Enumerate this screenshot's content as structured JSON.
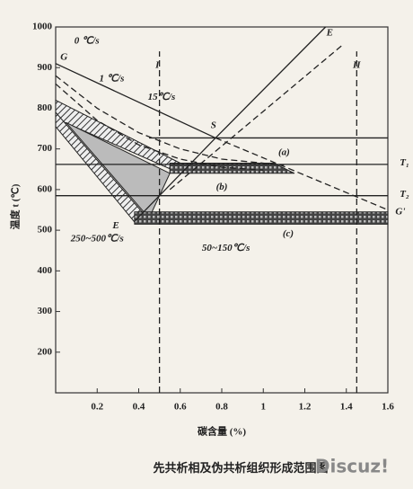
{
  "chart_data": {
    "type": "line",
    "y_label": "温度 t (℃)",
    "x_label": "碳含量 (%)",
    "caption": "先共析相及伪共析组织形成范围图",
    "watermark": "Discuz!",
    "xlim": [
      0,
      1.6
    ],
    "ylim": [
      100,
      1000
    ],
    "xticks": [
      0.2,
      0.4,
      0.6,
      0.8,
      1.0,
      1.2,
      1.4,
      1.6
    ],
    "yticks": [
      200,
      300,
      400,
      500,
      600,
      700,
      800,
      900,
      1000
    ],
    "series": [
      {
        "x": [
          0,
          0.77
        ],
        "y": [
          910,
          727
        ],
        "dash": false
      },
      {
        "x": [
          0.45,
          1.6
        ],
        "y": [
          727,
          727
        ],
        "dash": false
      },
      {
        "x": [
          0.77,
          1.3
        ],
        "y": [
          727,
          1000
        ],
        "dash": false
      },
      {
        "x": [
          0,
          1.6
        ],
        "y": [
          662,
          662
        ],
        "dash": false
      },
      {
        "x": [
          0,
          1.6
        ],
        "y": [
          585,
          585
        ],
        "dash": false
      },
      {
        "x": [
          0.38,
          0.77
        ],
        "y": [
          522,
          727
        ],
        "dash": false
      },
      {
        "x": [
          0,
          0.2,
          0.4,
          0.6,
          0.8,
          1.0,
          1.1
        ],
        "y": [
          880,
          800,
          740,
          700,
          675,
          665,
          660
        ],
        "dash": true
      },
      {
        "x": [
          0,
          0.2,
          0.4,
          0.6,
          0.8,
          1.0
        ],
        "y": [
          860,
          770,
          710,
          675,
          655,
          648
        ],
        "dash": true
      },
      {
        "x": [
          0.77,
          1.6
        ],
        "y": [
          727,
          550
        ],
        "dash": true
      },
      {
        "x": [
          0.55,
          1.38
        ],
        "y": [
          600,
          955
        ],
        "dash": true
      },
      {
        "x": [
          0.5,
          0.5
        ],
        "y": [
          100,
          940
        ],
        "dash": true
      },
      {
        "x": [
          1.45,
          1.45
        ],
        "y": [
          100,
          940
        ],
        "dash": true
      }
    ],
    "regions": [
      {
        "x": [
          0,
          0.6,
          0.6,
          0
        ],
        "y": [
          820,
          665,
          640,
          775
        ],
        "pattern": "hatch"
      },
      {
        "x": [
          0,
          0.45,
          0.38,
          0
        ],
        "y": [
          790,
          525,
          520,
          755
        ],
        "pattern": "hatch"
      },
      {
        "x": [
          0.05,
          0.55,
          0.45
        ],
        "y": [
          765,
          640,
          530
        ],
        "pattern": "gray"
      },
      {
        "x": [
          0.55,
          1.05,
          1.15,
          0.55
        ],
        "y": [
          665,
          665,
          640,
          640
        ],
        "pattern": "cross"
      },
      {
        "x": [
          0.38,
          1.6,
          1.6,
          0.38
        ],
        "y": [
          545,
          545,
          515,
          515
        ],
        "pattern": "cross"
      }
    ],
    "annotations": [
      {
        "text": "G",
        "x": 0.04,
        "y": 925
      },
      {
        "text": "0 ℃/s",
        "x": 0.15,
        "y": 965
      },
      {
        "text": "1 ℃/s",
        "x": 0.27,
        "y": 872
      },
      {
        "text": "15℃/s",
        "x": 0.51,
        "y": 827
      },
      {
        "text": "S",
        "x": 0.76,
        "y": 757
      },
      {
        "text": "E",
        "x": 1.32,
        "y": 985
      },
      {
        "text": "(a)",
        "x": 1.1,
        "y": 690
      },
      {
        "text": "(b)",
        "x": 0.8,
        "y": 605
      },
      {
        "text": "(c)",
        "x": 1.12,
        "y": 490
      },
      {
        "text": "E",
        "x": 0.29,
        "y": 510
      },
      {
        "text": "T₁",
        "x": 1.68,
        "y": 665
      },
      {
        "text": "T₂",
        "x": 1.68,
        "y": 588
      },
      {
        "text": "G'",
        "x": 1.66,
        "y": 545
      },
      {
        "text": "I",
        "x": 0.49,
        "y": 905
      },
      {
        "text": "II",
        "x": 1.45,
        "y": 905
      },
      {
        "text": "250~500℃/s",
        "x": 0.2,
        "y": 478
      },
      {
        "text": "50~150℃/s",
        "x": 0.82,
        "y": 455
      }
    ]
  }
}
